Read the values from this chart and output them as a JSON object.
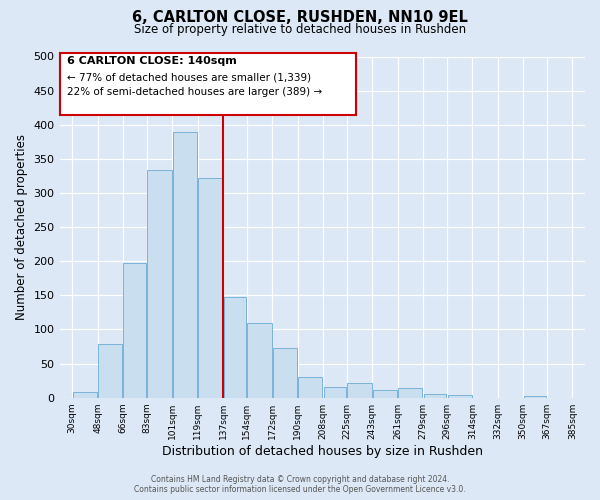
{
  "title": "6, CARLTON CLOSE, RUSHDEN, NN10 9EL",
  "subtitle": "Size of property relative to detached houses in Rushden",
  "xlabel": "Distribution of detached houses by size in Rushden",
  "ylabel": "Number of detached properties",
  "bar_left_edges": [
    30,
    48,
    66,
    83,
    101,
    119,
    137,
    154,
    172,
    190,
    208,
    225,
    243,
    261,
    279,
    296,
    314,
    332,
    350,
    367
  ],
  "bar_widths": [
    18,
    18,
    17,
    18,
    18,
    18,
    17,
    18,
    18,
    18,
    17,
    18,
    18,
    18,
    17,
    18,
    18,
    18,
    17,
    18
  ],
  "bar_heights": [
    8,
    78,
    197,
    333,
    390,
    322,
    148,
    109,
    73,
    30,
    16,
    21,
    12,
    14,
    6,
    4,
    0,
    0,
    3,
    0
  ],
  "bar_color": "#c9dff0",
  "bar_edge_color": "#7ab3d9",
  "tick_labels": [
    "30sqm",
    "48sqm",
    "66sqm",
    "83sqm",
    "101sqm",
    "119sqm",
    "137sqm",
    "154sqm",
    "172sqm",
    "190sqm",
    "208sqm",
    "225sqm",
    "243sqm",
    "261sqm",
    "279sqm",
    "296sqm",
    "314sqm",
    "332sqm",
    "350sqm",
    "367sqm",
    "385sqm"
  ],
  "ylim": [
    0,
    500
  ],
  "yticks": [
    0,
    50,
    100,
    150,
    200,
    250,
    300,
    350,
    400,
    450,
    500
  ],
  "xlim": [
    21,
    394
  ],
  "vline_x": 137,
  "vline_color": "#cc0000",
  "annotation_title": "6 CARLTON CLOSE: 140sqm",
  "annotation_line1": "← 77% of detached houses are smaller (1,339)",
  "annotation_line2": "22% of semi-detached houses are larger (389) →",
  "annotation_box_color": "#cc0000",
  "bg_color": "#dce8f5",
  "plot_bg_color": "#dce8f5",
  "grid_color": "#ffffff",
  "footer_line1": "Contains HM Land Registry data © Crown copyright and database right 2024.",
  "footer_line2": "Contains public sector information licensed under the Open Government Licence v3.0."
}
